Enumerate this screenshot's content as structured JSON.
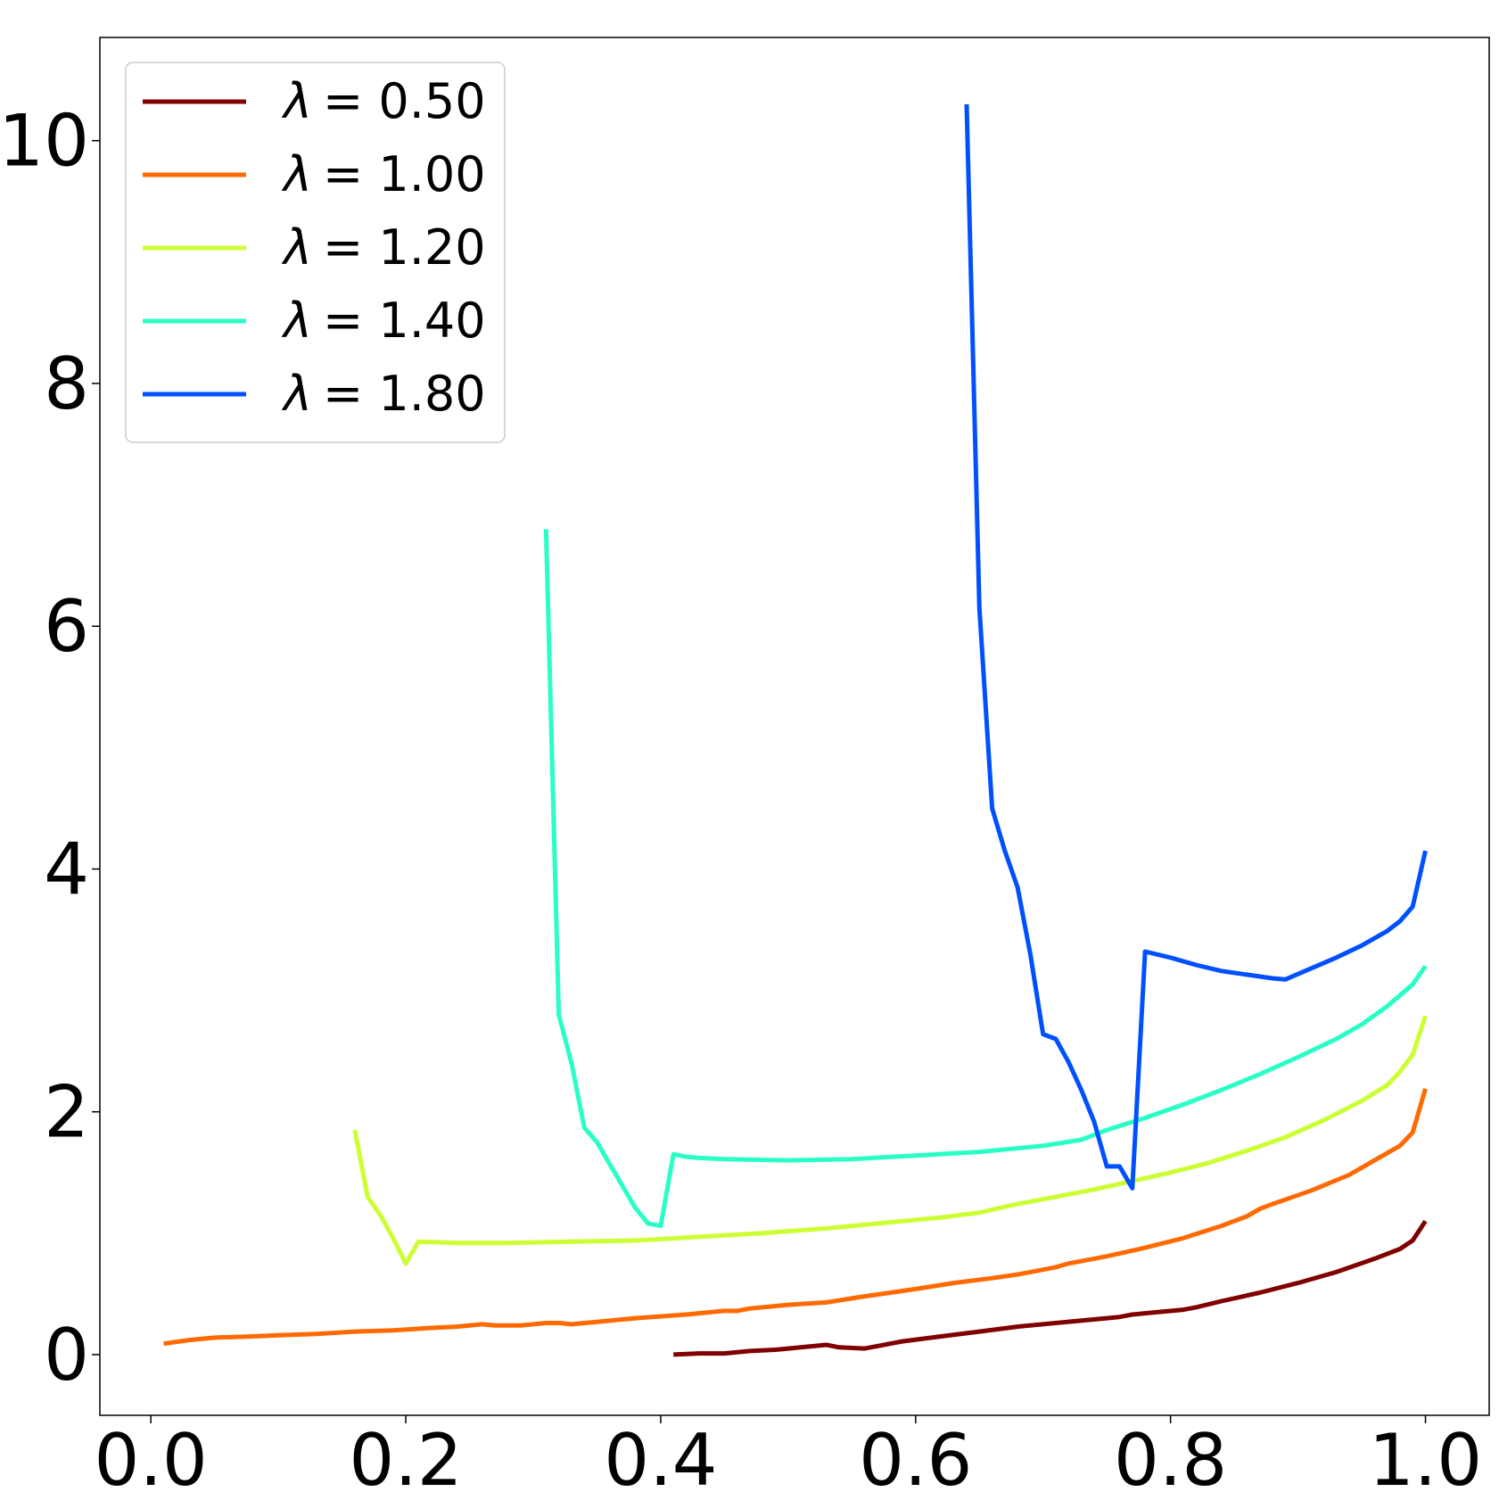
{
  "chart_data": {
    "type": "line",
    "title": "",
    "xlabel": "",
    "ylabel": "",
    "xlim": [
      -0.04,
      1.05
    ],
    "ylim": [
      -0.5,
      10.85
    ],
    "x_ticks": [
      "0.0",
      "0.2",
      "0.4",
      "0.6",
      "0.8",
      "1.0"
    ],
    "y_ticks": [
      "0",
      "2",
      "4",
      "6",
      "8",
      "10"
    ],
    "x_tick_values": [
      0.0,
      0.2,
      0.4,
      0.6,
      0.8,
      1.0
    ],
    "y_tick_values": [
      0,
      2,
      4,
      6,
      8,
      10
    ],
    "grid": false,
    "legend": {
      "position": "top-left"
    },
    "series": [
      {
        "name": "λ = 0.50",
        "label_symbol": "λ",
        "label_eq": "= 0.50",
        "color": "#800000",
        "points": [
          [
            0.41,
            0.0
          ],
          [
            0.43,
            0.01
          ],
          [
            0.45,
            0.01
          ],
          [
            0.47,
            0.03
          ],
          [
            0.49,
            0.04
          ],
          [
            0.51,
            0.06
          ],
          [
            0.53,
            0.08
          ],
          [
            0.54,
            0.06
          ],
          [
            0.56,
            0.05
          ],
          [
            0.57,
            0.07
          ],
          [
            0.58,
            0.09
          ],
          [
            0.59,
            0.11
          ],
          [
            0.62,
            0.15
          ],
          [
            0.65,
            0.19
          ],
          [
            0.68,
            0.23
          ],
          [
            0.71,
            0.26
          ],
          [
            0.75,
            0.3
          ],
          [
            0.76,
            0.31
          ],
          [
            0.77,
            0.33
          ],
          [
            0.79,
            0.35
          ],
          [
            0.81,
            0.37
          ],
          [
            0.82,
            0.39
          ],
          [
            0.84,
            0.44
          ],
          [
            0.87,
            0.51
          ],
          [
            0.9,
            0.59
          ],
          [
            0.93,
            0.68
          ],
          [
            0.96,
            0.79
          ],
          [
            0.98,
            0.87
          ],
          [
            0.99,
            0.94
          ],
          [
            1.0,
            1.1
          ]
        ]
      },
      {
        "name": "λ = 1.00",
        "label_symbol": "λ",
        "label_eq": "= 1.00",
        "color": "#ff6a00",
        "points": [
          [
            0.01,
            0.09
          ],
          [
            0.03,
            0.12
          ],
          [
            0.05,
            0.14
          ],
          [
            0.08,
            0.15
          ],
          [
            0.1,
            0.16
          ],
          [
            0.13,
            0.17
          ],
          [
            0.16,
            0.19
          ],
          [
            0.19,
            0.2
          ],
          [
            0.22,
            0.22
          ],
          [
            0.24,
            0.23
          ],
          [
            0.26,
            0.25
          ],
          [
            0.27,
            0.24
          ],
          [
            0.29,
            0.24
          ],
          [
            0.31,
            0.26
          ],
          [
            0.32,
            0.26
          ],
          [
            0.33,
            0.25
          ],
          [
            0.35,
            0.27
          ],
          [
            0.38,
            0.3
          ],
          [
            0.42,
            0.33
          ],
          [
            0.45,
            0.36
          ],
          [
            0.46,
            0.36
          ],
          [
            0.47,
            0.38
          ],
          [
            0.5,
            0.41
          ],
          [
            0.53,
            0.43
          ],
          [
            0.56,
            0.48
          ],
          [
            0.6,
            0.54
          ],
          [
            0.63,
            0.59
          ],
          [
            0.66,
            0.63
          ],
          [
            0.68,
            0.66
          ],
          [
            0.69,
            0.68
          ],
          [
            0.7,
            0.7
          ],
          [
            0.71,
            0.72
          ],
          [
            0.72,
            0.75
          ],
          [
            0.75,
            0.81
          ],
          [
            0.78,
            0.88
          ],
          [
            0.81,
            0.96
          ],
          [
            0.84,
            1.06
          ],
          [
            0.86,
            1.14
          ],
          [
            0.87,
            1.2
          ],
          [
            0.88,
            1.24
          ],
          [
            0.91,
            1.35
          ],
          [
            0.94,
            1.48
          ],
          [
            0.96,
            1.6
          ],
          [
            0.98,
            1.72
          ],
          [
            0.99,
            1.83
          ],
          [
            1.0,
            2.19
          ]
        ]
      },
      {
        "name": "λ = 1.20",
        "label_symbol": "λ",
        "label_eq": "= 1.20",
        "color": "#ccff33",
        "points": [
          [
            0.16,
            1.85
          ],
          [
            0.17,
            1.3
          ],
          [
            0.18,
            1.15
          ],
          [
            0.19,
            0.96
          ],
          [
            0.2,
            0.75
          ],
          [
            0.21,
            0.93
          ],
          [
            0.24,
            0.92
          ],
          [
            0.28,
            0.92
          ],
          [
            0.33,
            0.93
          ],
          [
            0.38,
            0.94
          ],
          [
            0.43,
            0.97
          ],
          [
            0.48,
            1.0
          ],
          [
            0.53,
            1.04
          ],
          [
            0.58,
            1.09
          ],
          [
            0.62,
            1.13
          ],
          [
            0.65,
            1.17
          ],
          [
            0.68,
            1.24
          ],
          [
            0.71,
            1.3
          ],
          [
            0.74,
            1.36
          ],
          [
            0.77,
            1.43
          ],
          [
            0.8,
            1.5
          ],
          [
            0.83,
            1.58
          ],
          [
            0.86,
            1.68
          ],
          [
            0.89,
            1.79
          ],
          [
            0.92,
            1.93
          ],
          [
            0.95,
            2.09
          ],
          [
            0.97,
            2.22
          ],
          [
            0.98,
            2.33
          ],
          [
            0.99,
            2.47
          ],
          [
            1.0,
            2.79
          ]
        ]
      },
      {
        "name": "λ = 1.40",
        "label_symbol": "λ",
        "label_eq": "= 1.40",
        "color": "#29ffc6",
        "points": [
          [
            0.31,
            6.8
          ],
          [
            0.32,
            2.8
          ],
          [
            0.33,
            2.4
          ],
          [
            0.34,
            1.87
          ],
          [
            0.35,
            1.75
          ],
          [
            0.36,
            1.57
          ],
          [
            0.37,
            1.39
          ],
          [
            0.38,
            1.21
          ],
          [
            0.39,
            1.08
          ],
          [
            0.4,
            1.06
          ],
          [
            0.41,
            1.65
          ],
          [
            0.42,
            1.63
          ],
          [
            0.43,
            1.62
          ],
          [
            0.45,
            1.61
          ],
          [
            0.5,
            1.6
          ],
          [
            0.55,
            1.61
          ],
          [
            0.6,
            1.64
          ],
          [
            0.65,
            1.67
          ],
          [
            0.7,
            1.72
          ],
          [
            0.73,
            1.77
          ],
          [
            0.75,
            1.85
          ],
          [
            0.78,
            1.95
          ],
          [
            0.81,
            2.06
          ],
          [
            0.84,
            2.18
          ],
          [
            0.87,
            2.31
          ],
          [
            0.9,
            2.45
          ],
          [
            0.93,
            2.6
          ],
          [
            0.95,
            2.72
          ],
          [
            0.97,
            2.87
          ],
          [
            0.99,
            3.05
          ],
          [
            1.0,
            3.2
          ]
        ]
      },
      {
        "name": "λ = 1.80",
        "label_symbol": "λ",
        "label_eq": "= 1.80",
        "color": "#0050ff",
        "points": [
          [
            0.64,
            10.3
          ],
          [
            0.65,
            6.15
          ],
          [
            0.66,
            4.5
          ],
          [
            0.67,
            4.15
          ],
          [
            0.68,
            3.85
          ],
          [
            0.69,
            3.3
          ],
          [
            0.7,
            2.64
          ],
          [
            0.71,
            2.6
          ],
          [
            0.72,
            2.41
          ],
          [
            0.73,
            2.18
          ],
          [
            0.74,
            1.92
          ],
          [
            0.75,
            1.55
          ],
          [
            0.76,
            1.55
          ],
          [
            0.77,
            1.37
          ],
          [
            0.78,
            3.32
          ],
          [
            0.8,
            3.27
          ],
          [
            0.82,
            3.21
          ],
          [
            0.84,
            3.16
          ],
          [
            0.86,
            3.13
          ],
          [
            0.88,
            3.1
          ],
          [
            0.89,
            3.09
          ],
          [
            0.91,
            3.18
          ],
          [
            0.93,
            3.27
          ],
          [
            0.95,
            3.37
          ],
          [
            0.97,
            3.49
          ],
          [
            0.98,
            3.57
          ],
          [
            0.99,
            3.69
          ],
          [
            1.0,
            4.15
          ]
        ]
      }
    ]
  }
}
